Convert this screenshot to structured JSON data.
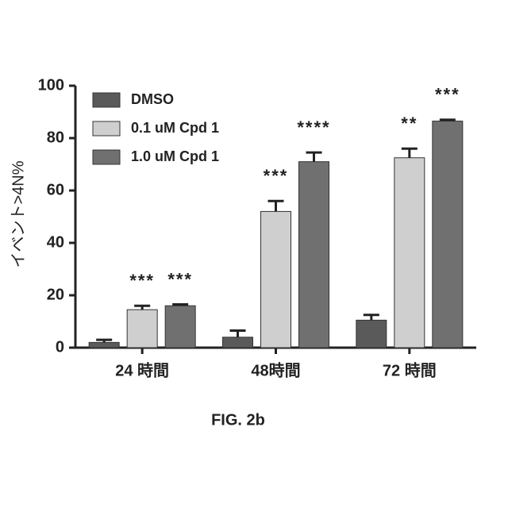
{
  "chart_data": {
    "type": "bar",
    "title": "FIG. 2b",
    "y_label": "イベント>4N%",
    "categories": [
      "24 時間",
      "48時間",
      "72 時間"
    ],
    "series": [
      {
        "name": "DMSO",
        "color": "#5a5a5a",
        "values": [
          2,
          4,
          10.5
        ],
        "errors": [
          1,
          2.5,
          2
        ]
      },
      {
        "name": "0.1 uM Cpd 1",
        "color": "#cfcfcf",
        "values": [
          14.5,
          52,
          72.5
        ],
        "errors": [
          1.5,
          4,
          3.5
        ],
        "annotations": [
          "***",
          "***",
          "**"
        ]
      },
      {
        "name": "1.0 uM Cpd 1",
        "color": "#707070",
        "values": [
          16,
          71,
          86.5
        ],
        "errors": [
          0.5,
          3.5,
          0.5
        ],
        "annotations": [
          "***",
          "****",
          "***"
        ]
      }
    ],
    "ylim": [
      0,
      100
    ],
    "yticks": [
      0,
      20,
      40,
      60,
      80,
      100
    ],
    "legend": "top-left"
  }
}
